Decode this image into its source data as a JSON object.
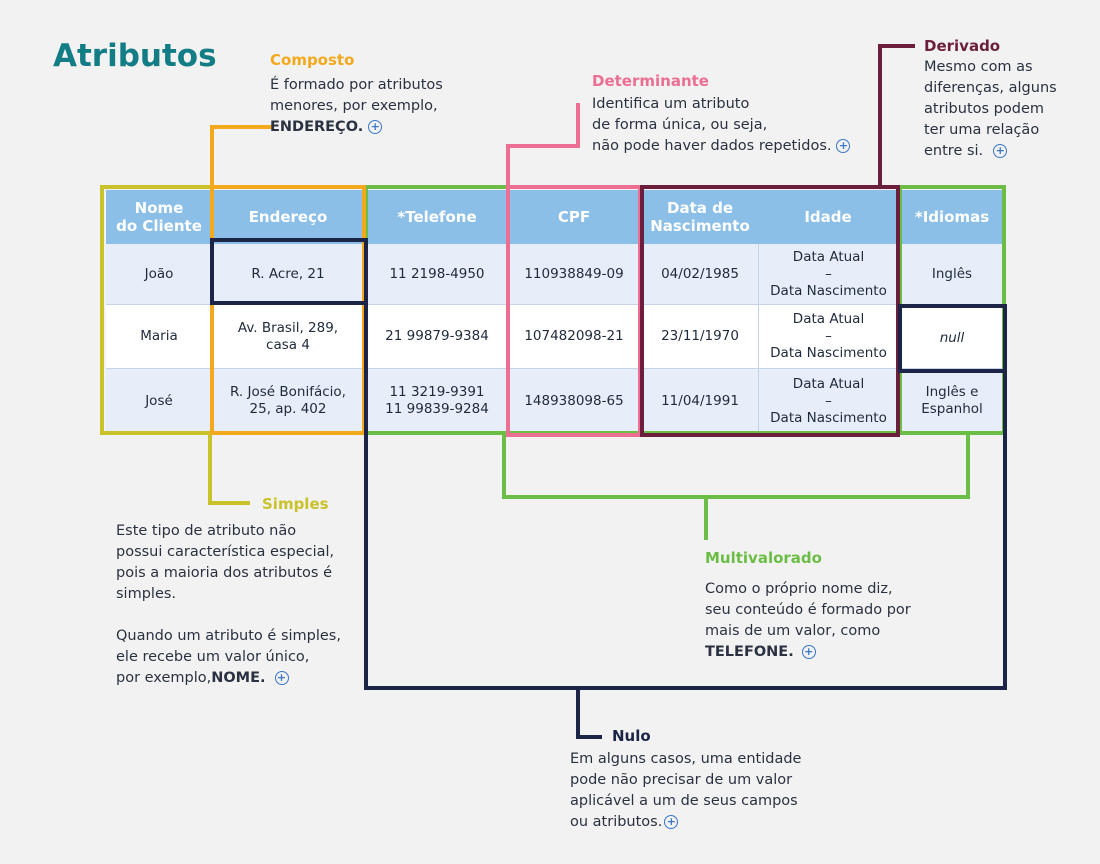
{
  "title": "Atributos",
  "callouts": {
    "composto": {
      "title": "Composto",
      "lines": [
        "É formado por atributos",
        "menores, por exemplo,"
      ],
      "bold": "ENDEREÇO."
    },
    "determinante": {
      "title": "Determinante",
      "lines": [
        "Identifica um atributo",
        "de forma única, ou seja,",
        "não pode haver dados repetidos."
      ]
    },
    "derivado": {
      "title": "Derivado",
      "lines": [
        "Mesmo com as",
        "diferenças, alguns",
        "atributos podem",
        "ter uma relação",
        "entre si."
      ]
    },
    "simples": {
      "title": "Simples",
      "para1": [
        "Este tipo de atributo não",
        "possui característica especial,",
        "pois a maioria dos atributos é",
        "simples."
      ],
      "para2": [
        "Quando um atributo é simples,",
        "ele recebe um valor único,"
      ],
      "para2_last": "por exemplo,",
      "bold": "NOME."
    },
    "multivalorado": {
      "title": "Multivalorado",
      "lines": [
        "Como o próprio nome diz,",
        "seu conteúdo é formado por",
        "mais de um valor, como"
      ],
      "bold": "TELEFONE."
    },
    "nulo": {
      "title": "Nulo",
      "lines": [
        "Em alguns casos, uma entidade",
        "pode não precisar de um valor",
        "aplicável a um de seus campos",
        "ou atributos."
      ]
    }
  },
  "table": {
    "headers": {
      "nome_l1": "Nome",
      "nome_l2": "do Cliente",
      "endereco": "Endereço",
      "telefone": "*Telefone",
      "cpf": "CPF",
      "data_l1": "Data de",
      "data_l2": "Nascimento",
      "idade": "Idade",
      "idiomas": "*Idiomas"
    },
    "rows": [
      {
        "nome": "João",
        "endereco_l1": "R. Acre, 21",
        "endereco_l2": "",
        "tel_l1": "11 2198-4950",
        "tel_l2": "",
        "cpf": "110938849-09",
        "data": "04/02/1985",
        "idade_l1": "Data Atual",
        "idade_l2": "–",
        "idade_l3": "Data Nascimento",
        "idiomas_l1": "Inglês",
        "idiomas_l2": ""
      },
      {
        "nome": "Maria",
        "endereco_l1": "Av. Brasil, 289,",
        "endereco_l2": "casa 4",
        "tel_l1": "21 99879-9384",
        "tel_l2": "",
        "cpf": "107482098-21",
        "data": "23/11/1970",
        "idade_l1": "Data Atual",
        "idade_l2": "–",
        "idade_l3": "Data Nascimento",
        "idiomas_l1": "null",
        "idiomas_l2": ""
      },
      {
        "nome": "José",
        "endereco_l1": "R. José Bonifácio,",
        "endereco_l2": "25, ap. 402",
        "tel_l1": "11 3219-9391",
        "tel_l2": "11 99839-9284",
        "cpf": "148938098-65",
        "data": "11/04/1991",
        "idade_l1": "Data Atual",
        "idade_l2": "–",
        "idade_l3": "Data Nascimento",
        "idiomas_l1": "Inglês e",
        "idiomas_l2": "Espanhol"
      }
    ]
  },
  "colors": {
    "simples": "#c9c22a",
    "composto": "#f4a81d",
    "multivalorado": "#6cbd45",
    "determinante": "#ec6e93",
    "derivado": "#6b1f3c",
    "nulo": "#1c2548",
    "title": "#127d84",
    "header": "#8bbfe8"
  },
  "plus_icon": "circle-plus-icon"
}
